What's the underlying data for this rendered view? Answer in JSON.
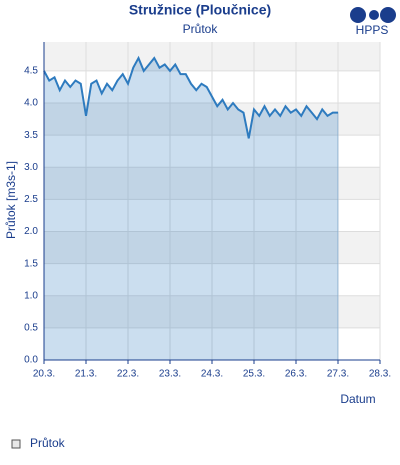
{
  "chart_data": {
    "type": "area",
    "title": "Stružnice (Ploučnice)",
    "subtitle": "Průtok",
    "logo": "HPPS",
    "y_label": "Průtok [m3s-1]",
    "x_label": "Datum",
    "xlim": [
      20,
      28
    ],
    "xticks": [
      {
        "value": 20,
        "label": "20.3."
      },
      {
        "value": 21,
        "label": "21.3."
      },
      {
        "value": 22,
        "label": "22.3."
      },
      {
        "value": 23,
        "label": "23.3."
      },
      {
        "value": 24,
        "label": "24.3."
      },
      {
        "value": 25,
        "label": "25.3."
      },
      {
        "value": 26,
        "label": "26.3."
      },
      {
        "value": 27,
        "label": "27.3."
      },
      {
        "value": 28,
        "label": "28.3."
      }
    ],
    "ylim": [
      0,
      4.95
    ],
    "yticks": [
      {
        "value": 0,
        "label": "0.0"
      },
      0.5,
      {
        "value": 1,
        "label": "1.0"
      },
      1.5,
      {
        "value": 2,
        "label": "2.0"
      },
      2.5,
      {
        "value": 3,
        "label": "3.0"
      },
      3.5,
      {
        "value": 4,
        "label": "4.0"
      },
      4.5
    ],
    "grid": true,
    "x": [
      20,
      20.125,
      20.25,
      20.375,
      20.5,
      20.625,
      20.75,
      20.875,
      21,
      21.125,
      21.25,
      21.375,
      21.5,
      21.625,
      21.75,
      21.875,
      22,
      22.125,
      22.25,
      22.375,
      22.5,
      22.625,
      22.75,
      22.875,
      23,
      23.125,
      23.25,
      23.375,
      23.5,
      23.625,
      23.75,
      23.875,
      24,
      24.125,
      24.25,
      24.375,
      24.5,
      24.625,
      24.75,
      24.875,
      25,
      25.125,
      25.25,
      25.375,
      25.5,
      25.625,
      25.75,
      25.875,
      26,
      26.125,
      26.25,
      26.375,
      26.5,
      26.625,
      26.75,
      26.875,
      27
    ],
    "series": [
      {
        "name": "Průtok",
        "color": "#2e7bbf",
        "values": [
          4.5,
          4.35,
          4.4,
          4.2,
          4.35,
          4.25,
          4.35,
          4.3,
          3.8,
          4.3,
          4.35,
          4.15,
          4.3,
          4.2,
          4.35,
          4.45,
          4.3,
          4.55,
          4.7,
          4.5,
          4.6,
          4.7,
          4.55,
          4.6,
          4.5,
          4.6,
          4.45,
          4.45,
          4.3,
          4.2,
          4.3,
          4.25,
          4.1,
          3.95,
          4.05,
          3.9,
          4.0,
          3.9,
          3.85,
          3.45,
          3.9,
          3.8,
          3.95,
          3.8,
          3.9,
          3.8,
          3.95,
          3.85,
          3.9,
          3.8,
          3.95,
          3.85,
          3.75,
          3.9,
          3.8,
          3.85,
          3.85
        ]
      }
    ]
  }
}
